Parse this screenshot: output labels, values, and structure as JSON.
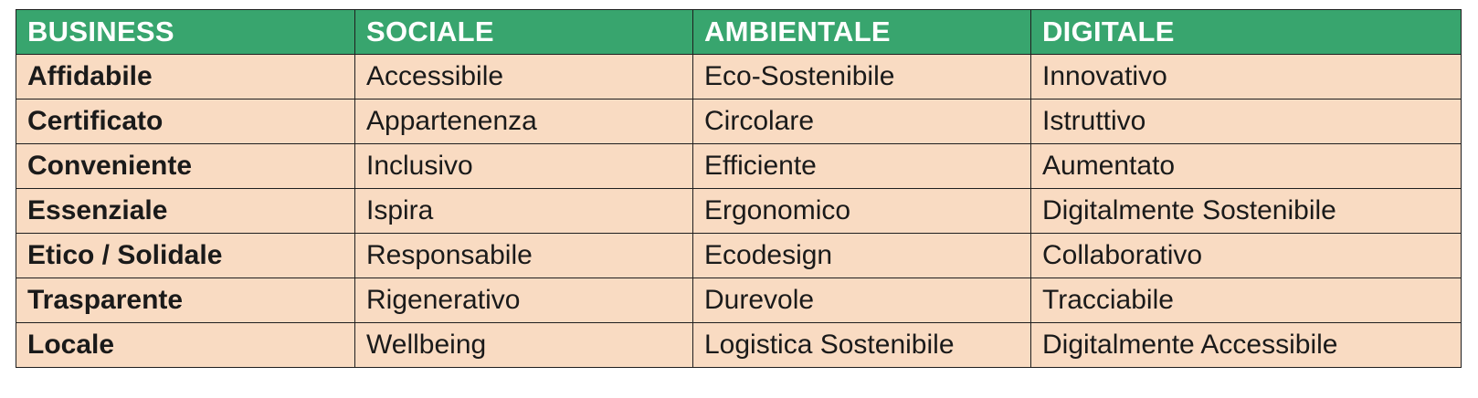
{
  "table": {
    "headers": [
      "BUSINESS",
      "SOCIALE",
      "AMBIENTALE",
      "DIGITALE"
    ],
    "rows": [
      [
        "Affidabile",
        "Accessibile",
        "Eco-Sostenibile",
        "Innovativo"
      ],
      [
        "Certificato",
        "Appartenenza",
        "Circolare",
        "Istruttivo"
      ],
      [
        "Conveniente",
        "Inclusivo",
        "Efficiente",
        "Aumentato"
      ],
      [
        "Essenziale",
        "Ispira",
        "Ergonomico",
        "Digitalmente Sostenibile"
      ],
      [
        "Etico / Solidale",
        "Responsabile",
        "Ecodesign",
        "Collaborativo"
      ],
      [
        "Trasparente",
        "Rigenerativo",
        "Durevole",
        "Tracciabile"
      ],
      [
        "Locale",
        "Wellbeing",
        "Logistica Sostenibile",
        "Digitalmente Accessibile"
      ]
    ]
  },
  "colors": {
    "header_bg": "#38a56e",
    "header_text": "#ffffff",
    "cell_bg": "#f9dbc2",
    "border": "#1f1f1f"
  }
}
